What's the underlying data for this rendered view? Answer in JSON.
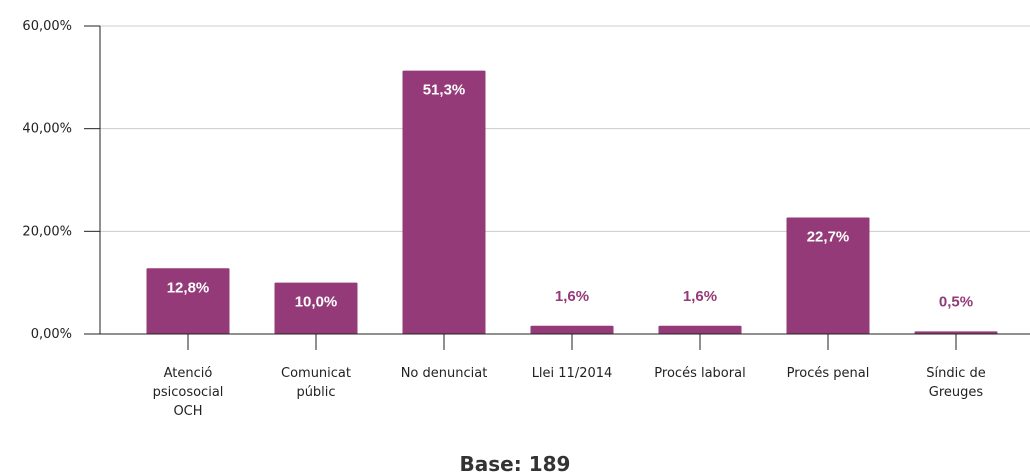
{
  "chart_data": {
    "type": "bar",
    "categories": [
      [
        "Atenció",
        "psicosocial",
        "OCH"
      ],
      [
        "Comunicat",
        "públic"
      ],
      [
        "No denunciat"
      ],
      [
        "Llei 11/2014"
      ],
      [
        "Procés laboral"
      ],
      [
        "Procés penal"
      ],
      [
        "Síndic de",
        "Greuges"
      ]
    ],
    "values": [
      12.8,
      10.0,
      51.3,
      1.6,
      1.6,
      22.7,
      0.5
    ],
    "data_labels": [
      "12,8%",
      "10,0%",
      "51,3%",
      "1,6%",
      "1,6%",
      "22,7%",
      "0,5%"
    ],
    "y_ticks": [
      0,
      20,
      40,
      60
    ],
    "y_tick_labels": [
      "0,00%",
      "20,00%",
      "40,00%",
      "60,00%"
    ],
    "ylim": [
      0,
      60
    ],
    "grid": true,
    "colors": {
      "bar": "#943a78",
      "inside_label": "#ffffff",
      "outside_label": "#943a78",
      "grid": "#cccccc"
    }
  },
  "footer": {
    "base_label": "Base: 189"
  }
}
